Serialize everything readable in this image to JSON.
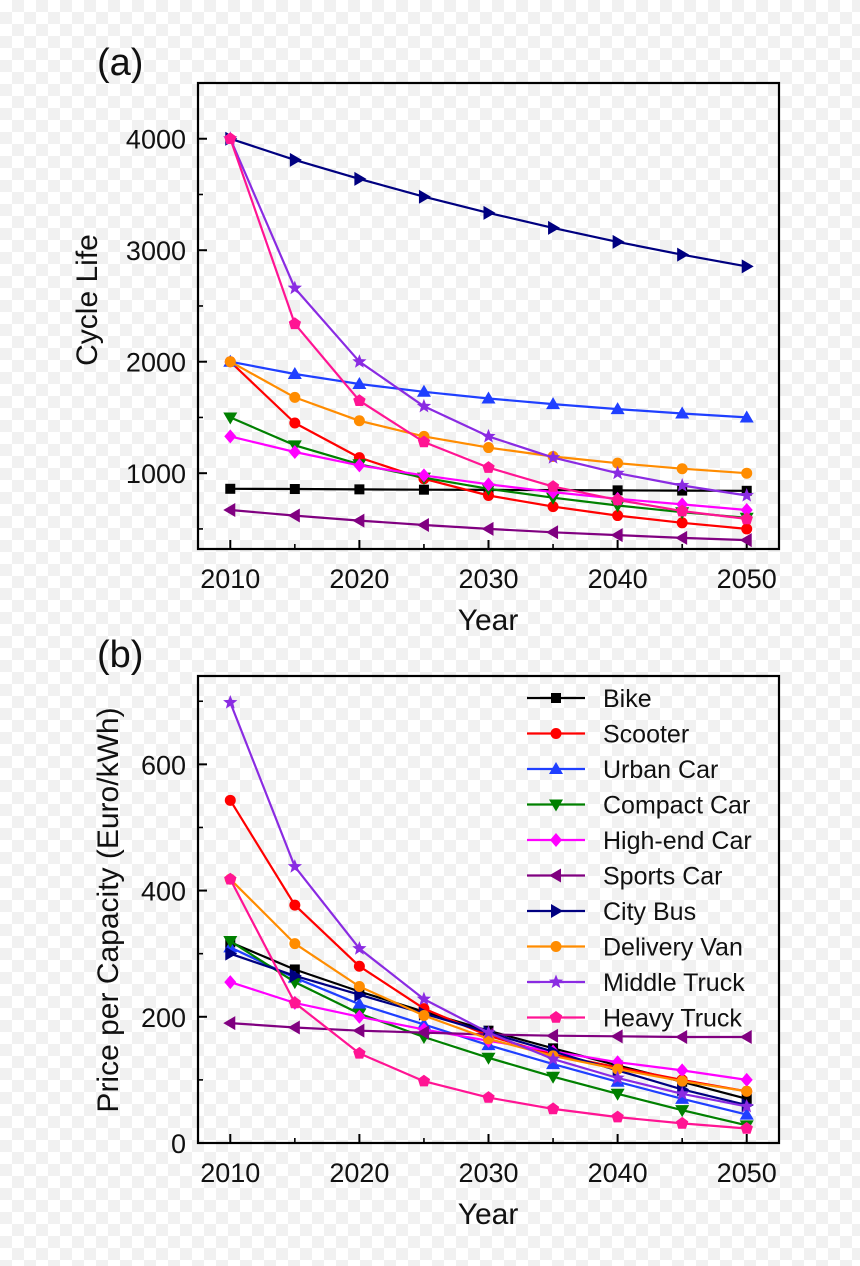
{
  "chart_data": [
    {
      "panel_label": "(a)",
      "type": "line",
      "xlabel": "Year",
      "ylabel": "Cycle Life",
      "xlim": [
        2007.5,
        2052.5
      ],
      "ylim": [
        320,
        4500
      ],
      "xticks": [
        2010,
        2020,
        2030,
        2040,
        2050
      ],
      "yticks": [
        1000,
        2000,
        3000,
        4000
      ],
      "x": [
        2010,
        2015,
        2020,
        2025,
        2030,
        2035,
        2040,
        2045,
        2050
      ],
      "series": [
        {
          "name": "Bike",
          "color": "#000000",
          "marker": "square",
          "values": [
            860,
            858,
            855,
            852,
            850,
            848,
            846,
            844,
            842
          ]
        },
        {
          "name": "Scooter",
          "color": "#ff0000",
          "marker": "circle",
          "values": [
            2000,
            1450,
            1140,
            950,
            800,
            700,
            620,
            555,
            500
          ]
        },
        {
          "name": "Urban Car",
          "color": "#1f3fff",
          "marker": "triangle-up",
          "values": [
            2000,
            1890,
            1800,
            1730,
            1670,
            1620,
            1575,
            1535,
            1500
          ]
        },
        {
          "name": "Compact Car",
          "color": "#008000",
          "marker": "triangle-down",
          "values": [
            1500,
            1250,
            1080,
            960,
            860,
            780,
            710,
            650,
            600
          ]
        },
        {
          "name": "High-end Car",
          "color": "#ff00ff",
          "marker": "diamond",
          "values": [
            1330,
            1190,
            1070,
            980,
            900,
            830,
            770,
            720,
            670
          ]
        },
        {
          "name": "Sports Car",
          "color": "#800080",
          "marker": "triangle-left",
          "values": [
            670,
            620,
            575,
            535,
            500,
            470,
            445,
            420,
            400
          ]
        },
        {
          "name": "City Bus",
          "color": "#000080",
          "marker": "triangle-right",
          "values": [
            4000,
            3810,
            3640,
            3480,
            3335,
            3200,
            3075,
            2960,
            2855
          ]
        },
        {
          "name": "Delivery Van",
          "color": "#ff8c00",
          "marker": "circle",
          "values": [
            2000,
            1680,
            1470,
            1330,
            1230,
            1150,
            1090,
            1040,
            1000
          ]
        },
        {
          "name": "Middle Truck",
          "color": "#8a2be2",
          "marker": "star",
          "values": [
            4000,
            2660,
            2000,
            1600,
            1330,
            1140,
            1000,
            890,
            800
          ]
        },
        {
          "name": "Heavy Truck",
          "color": "#ff1493",
          "marker": "pentagon",
          "values": [
            4000,
            2340,
            1650,
            1280,
            1050,
            880,
            760,
            660,
            590
          ]
        }
      ]
    },
    {
      "panel_label": "(b)",
      "type": "line",
      "xlabel": "Year",
      "ylabel": "Price per Capacity (Euro/kWh)",
      "xlim": [
        2007.5,
        2052.5
      ],
      "ylim": [
        0,
        740
      ],
      "xticks": [
        2010,
        2020,
        2030,
        2040,
        2050
      ],
      "yticks": [
        0,
        200,
        400,
        600
      ],
      "legend": "top-right",
      "x": [
        2010,
        2015,
        2020,
        2025,
        2030,
        2035,
        2040,
        2045,
        2050
      ],
      "series": [
        {
          "name": "Bike",
          "color": "#000000",
          "marker": "square",
          "values": [
            318,
            275,
            240,
            208,
            178,
            150,
            123,
            97,
            70
          ]
        },
        {
          "name": "Scooter",
          "color": "#ff0000",
          "marker": "circle",
          "values": [
            543,
            377,
            280,
            213,
            170,
            140,
            120,
            100,
            82
          ]
        },
        {
          "name": "Urban Car",
          "color": "#1f3fff",
          "marker": "triangle-up",
          "values": [
            310,
            262,
            220,
            188,
            155,
            125,
            97,
            70,
            45
          ]
        },
        {
          "name": "Compact Car",
          "color": "#008000",
          "marker": "triangle-down",
          "values": [
            320,
            255,
            205,
            168,
            135,
            105,
            78,
            52,
            28
          ]
        },
        {
          "name": "High-end Car",
          "color": "#ff00ff",
          "marker": "diamond",
          "values": [
            255,
            222,
            200,
            180,
            162,
            145,
            128,
            115,
            100
          ]
        },
        {
          "name": "Sports Car",
          "color": "#800080",
          "marker": "triangle-left",
          "values": [
            190,
            183,
            178,
            175,
            172,
            170,
            169,
            168,
            168
          ]
        },
        {
          "name": "City Bus",
          "color": "#000080",
          "marker": "triangle-right",
          "values": [
            300,
            265,
            235,
            205,
            175,
            145,
            115,
            85,
            60
          ]
        },
        {
          "name": "Delivery Van",
          "color": "#ff8c00",
          "marker": "circle",
          "values": [
            418,
            316,
            248,
            202,
            165,
            138,
            117,
            98,
            82
          ]
        },
        {
          "name": "Middle Truck",
          "color": "#8a2be2",
          "marker": "star",
          "values": [
            698,
            438,
            308,
            228,
            175,
            133,
            103,
            78,
            58
          ]
        },
        {
          "name": "Heavy Truck",
          "color": "#ff1493",
          "marker": "pentagon",
          "values": [
            418,
            222,
            142,
            98,
            72,
            54,
            41,
            31,
            23
          ]
        }
      ]
    }
  ]
}
